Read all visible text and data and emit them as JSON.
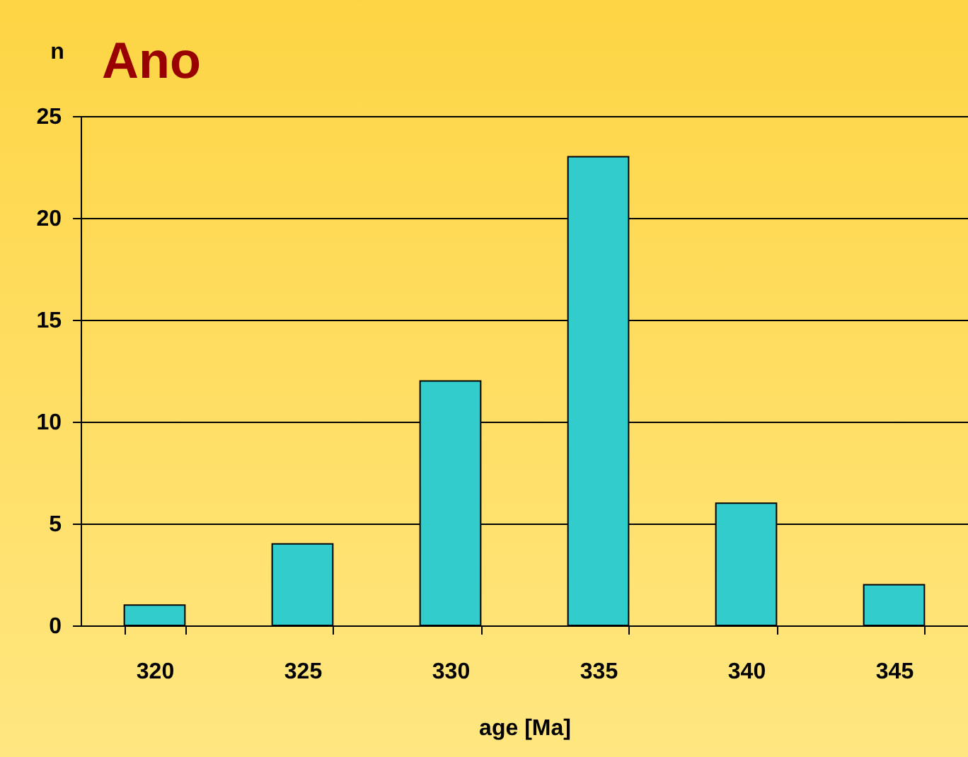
{
  "chart_data": {
    "type": "bar",
    "title": "Ano",
    "xlabel": "age [Ma]",
    "ylabel": "n",
    "categories": [
      "320",
      "325",
      "330",
      "335",
      "340",
      "345"
    ],
    "values": [
      1,
      4,
      12,
      23,
      6,
      2
    ],
    "color": "#33cccc",
    "ylim": [
      0,
      25
    ],
    "yticks": [
      0,
      5,
      10,
      15,
      20,
      25
    ],
    "grid": "y"
  }
}
